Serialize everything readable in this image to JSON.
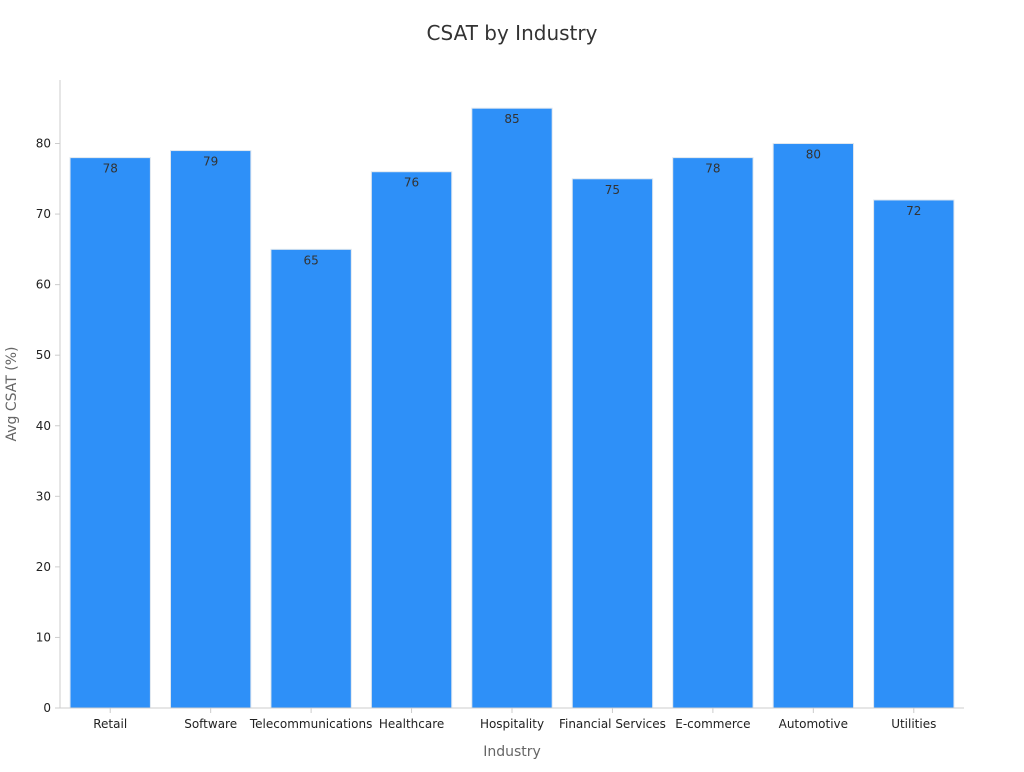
{
  "chart_data": {
    "type": "bar",
    "title": "CSAT by Industry",
    "xlabel": "Industry",
    "ylabel": "Avg CSAT (%)",
    "categories": [
      "Retail",
      "Software",
      "Telecommunications",
      "Healthcare",
      "Hospitality",
      "Financial Services",
      "E-commerce",
      "Automotive",
      "Utilities"
    ],
    "values": [
      78,
      79,
      65,
      76,
      85,
      75,
      78,
      80,
      72
    ],
    "ylim": [
      0,
      89
    ],
    "yticks": [
      0,
      10,
      20,
      30,
      40,
      50,
      60,
      70,
      80
    ],
    "grid": false,
    "data_labels": true,
    "colors": {
      "bar": "#2e90f8",
      "bar_edge": "#dfe7ef",
      "axis": "#cccccc",
      "title": "#333333",
      "axis_label": "#666666",
      "tick_label": "#222222",
      "data_label": "#333333"
    }
  }
}
